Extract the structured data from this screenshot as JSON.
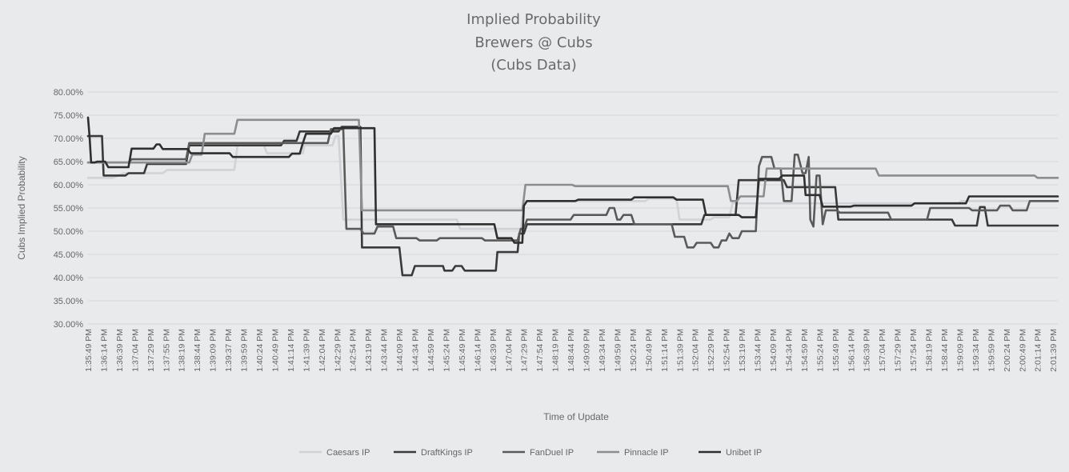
{
  "chart_data": {
    "type": "line",
    "title_lines": [
      "Implied Probability",
      "Brewers @ Cubs",
      "(Cubs Data)"
    ],
    "xlabel": "Time of Update",
    "ylabel": "Cubs Implied Probability",
    "ylim": [
      0.3,
      0.8
    ],
    "y_ticks": [
      "30.00%",
      "35.00%",
      "40.00%",
      "45.00%",
      "50.00%",
      "55.00%",
      "60.00%",
      "65.00%",
      "70.00%",
      "75.00%",
      "80.00%"
    ],
    "x_ticks": [
      "1:35:49 PM",
      "1:36:14 PM",
      "1:36:39 PM",
      "1:37:04 PM",
      "1:37:29 PM",
      "1:37:55 PM",
      "1:38:19 PM",
      "1:38:44 PM",
      "1:39:09 PM",
      "1:39:37 PM",
      "1:39:59 PM",
      "1:40:24 PM",
      "1:40:49 PM",
      "1:41:14 PM",
      "1:41:39 PM",
      "1:42:04 PM",
      "1:42:29 PM",
      "1:42:54 PM",
      "1:43:19 PM",
      "1:43:44 PM",
      "1:44:09 PM",
      "1:44:34 PM",
      "1:44:59 PM",
      "1:45:24 PM",
      "1:45:49 PM",
      "1:46:14 PM",
      "1:46:39 PM",
      "1:47:04 PM",
      "1:47:29 PM",
      "1:47:54 PM",
      "1:48:19 PM",
      "1:48:44 PM",
      "1:49:09 PM",
      "1:49:34 PM",
      "1:49:59 PM",
      "1:50:24 PM",
      "1:50:49 PM",
      "1:51:14 PM",
      "1:51:39 PM",
      "1:52:04 PM",
      "1:52:29 PM",
      "1:52:54 PM",
      "1:53:19 PM",
      "1:53:44 PM",
      "1:54:09 PM",
      "1:54:34 PM",
      "1:54:59 PM",
      "1:55:24 PM",
      "1:55:49 PM",
      "1:56:14 PM",
      "1:56:39 PM",
      "1:57:04 PM",
      "1:57:29 PM",
      "1:57:54 PM",
      "1:58:19 PM",
      "1:58:44 PM",
      "1:59:09 PM",
      "1:59:34 PM",
      "1:59:59 PM",
      "2:00:24 PM",
      "2:00:49 PM",
      "2:01:14 PM",
      "2:01:39 PM"
    ],
    "x_range_index": [
      0,
      62.3
    ],
    "legend_position": "bottom",
    "grid": true,
    "series": [
      {
        "name": "Caesars IP",
        "color": "#d0d2d6",
        "points": [
          [
            0,
            0.615
          ],
          [
            1.6,
            0.615
          ],
          [
            2.3,
            0.625
          ],
          [
            4.8,
            0.625
          ],
          [
            5.1,
            0.632
          ],
          [
            9.4,
            0.632
          ],
          [
            9.6,
            0.685
          ],
          [
            11.3,
            0.685
          ],
          [
            11.5,
            0.668
          ],
          [
            13.8,
            0.668
          ],
          [
            13.9,
            0.685
          ],
          [
            15.7,
            0.685
          ],
          [
            15.9,
            0.705
          ],
          [
            16.1,
            0.705
          ],
          [
            16.4,
            0.525
          ],
          [
            23.7,
            0.525
          ],
          [
            23.9,
            0.505
          ],
          [
            27.8,
            0.505
          ],
          [
            28.0,
            0.565
          ],
          [
            35.8,
            0.565
          ],
          [
            36.0,
            0.57
          ],
          [
            37.8,
            0.57
          ],
          [
            38.0,
            0.525
          ],
          [
            40.0,
            0.525
          ],
          [
            40.2,
            0.53
          ],
          [
            41.2,
            0.53
          ],
          [
            41.4,
            0.56
          ],
          [
            55.9,
            0.56
          ],
          [
            56.1,
            0.565
          ],
          [
            62.3,
            0.565
          ]
        ]
      },
      {
        "name": "DraftKings IP",
        "color": "#3a3a3a",
        "points": [
          [
            0,
            0.705
          ],
          [
            0.9,
            0.705
          ],
          [
            1.0,
            0.62
          ],
          [
            2.4,
            0.62
          ],
          [
            2.6,
            0.625
          ],
          [
            3.6,
            0.625
          ],
          [
            3.8,
            0.645
          ],
          [
            6.3,
            0.645
          ],
          [
            6.5,
            0.685
          ],
          [
            12.4,
            0.685
          ],
          [
            12.6,
            0.695
          ],
          [
            13.4,
            0.695
          ],
          [
            13.6,
            0.715
          ],
          [
            16.1,
            0.715
          ],
          [
            16.3,
            0.725
          ],
          [
            17.5,
            0.725
          ],
          [
            17.6,
            0.465
          ],
          [
            20.0,
            0.465
          ],
          [
            20.2,
            0.405
          ],
          [
            20.8,
            0.405
          ],
          [
            21.0,
            0.425
          ],
          [
            22.8,
            0.425
          ],
          [
            22.9,
            0.415
          ],
          [
            23.4,
            0.415
          ],
          [
            23.6,
            0.425
          ],
          [
            24.0,
            0.425
          ],
          [
            24.2,
            0.415
          ],
          [
            26.2,
            0.415
          ],
          [
            26.3,
            0.455
          ],
          [
            27.6,
            0.455
          ],
          [
            27.7,
            0.495
          ],
          [
            28.0,
            0.495
          ],
          [
            28.2,
            0.515
          ],
          [
            39.4,
            0.515
          ],
          [
            39.6,
            0.535
          ],
          [
            41.6,
            0.535
          ],
          [
            41.8,
            0.61
          ],
          [
            44.7,
            0.61
          ],
          [
            44.9,
            0.595
          ],
          [
            48.0,
            0.595
          ],
          [
            48.2,
            0.525
          ],
          [
            55.5,
            0.525
          ],
          [
            55.7,
            0.512
          ],
          [
            57.1,
            0.512
          ],
          [
            57.3,
            0.552
          ],
          [
            57.6,
            0.552
          ],
          [
            57.8,
            0.512
          ],
          [
            62.3,
            0.512
          ]
        ]
      },
      {
        "name": "FanDuel IP",
        "color": "#5a5a5a",
        "points": [
          [
            0,
            0.648
          ],
          [
            2.6,
            0.648
          ],
          [
            2.8,
            0.655
          ],
          [
            6.3,
            0.655
          ],
          [
            6.5,
            0.69
          ],
          [
            15.4,
            0.69
          ],
          [
            15.6,
            0.72
          ],
          [
            16.4,
            0.72
          ],
          [
            16.6,
            0.505
          ],
          [
            17.5,
            0.505
          ],
          [
            17.7,
            0.495
          ],
          [
            18.4,
            0.495
          ],
          [
            18.6,
            0.51
          ],
          [
            19.6,
            0.51
          ],
          [
            19.8,
            0.485
          ],
          [
            21.1,
            0.485
          ],
          [
            21.3,
            0.48
          ],
          [
            22.4,
            0.48
          ],
          [
            22.6,
            0.485
          ],
          [
            25.3,
            0.485
          ],
          [
            25.5,
            0.48
          ],
          [
            27.6,
            0.48
          ],
          [
            27.8,
            0.505
          ],
          [
            28.0,
            0.505
          ],
          [
            28.2,
            0.525
          ],
          [
            31.0,
            0.525
          ],
          [
            31.2,
            0.535
          ],
          [
            33.3,
            0.535
          ],
          [
            33.5,
            0.55
          ],
          [
            33.8,
            0.55
          ],
          [
            34.0,
            0.525
          ],
          [
            34.2,
            0.525
          ],
          [
            34.4,
            0.535
          ],
          [
            34.9,
            0.535
          ],
          [
            35.1,
            0.515
          ],
          [
            37.5,
            0.515
          ],
          [
            37.7,
            0.488
          ],
          [
            38.3,
            0.488
          ],
          [
            38.5,
            0.465
          ],
          [
            38.9,
            0.465
          ],
          [
            39.1,
            0.475
          ],
          [
            40.0,
            0.475
          ],
          [
            40.2,
            0.465
          ],
          [
            40.5,
            0.465
          ],
          [
            40.7,
            0.48
          ],
          [
            41.0,
            0.48
          ],
          [
            41.2,
            0.495
          ],
          [
            41.4,
            0.485
          ],
          [
            41.8,
            0.485
          ],
          [
            42.0,
            0.5
          ],
          [
            42.9,
            0.5
          ],
          [
            43.1,
            0.64
          ],
          [
            43.3,
            0.66
          ],
          [
            43.9,
            0.66
          ],
          [
            44.1,
            0.635
          ],
          [
            44.5,
            0.635
          ],
          [
            44.7,
            0.565
          ],
          [
            45.2,
            0.565
          ],
          [
            45.4,
            0.665
          ],
          [
            45.6,
            0.665
          ],
          [
            45.9,
            0.625
          ],
          [
            46.1,
            0.625
          ],
          [
            46.3,
            0.66
          ],
          [
            46.4,
            0.525
          ],
          [
            46.6,
            0.51
          ],
          [
            46.8,
            0.62
          ],
          [
            47.0,
            0.62
          ],
          [
            47.2,
            0.515
          ],
          [
            47.4,
            0.545
          ],
          [
            48.1,
            0.545
          ],
          [
            48.3,
            0.54
          ],
          [
            51.4,
            0.54
          ],
          [
            51.6,
            0.525
          ],
          [
            53.9,
            0.525
          ],
          [
            54.1,
            0.55
          ],
          [
            56.6,
            0.55
          ],
          [
            56.8,
            0.545
          ],
          [
            58.4,
            0.545
          ],
          [
            58.6,
            0.555
          ],
          [
            59.2,
            0.555
          ],
          [
            59.4,
            0.545
          ],
          [
            60.3,
            0.545
          ],
          [
            60.5,
            0.565
          ],
          [
            62.3,
            0.565
          ]
        ]
      },
      {
        "name": "Pinnacle IP",
        "color": "#8c8d90",
        "points": [
          [
            0,
            0.648
          ],
          [
            6.5,
            0.648
          ],
          [
            6.7,
            0.665
          ],
          [
            7.3,
            0.665
          ],
          [
            7.5,
            0.71
          ],
          [
            9.4,
            0.71
          ],
          [
            9.6,
            0.74
          ],
          [
            17.4,
            0.74
          ],
          [
            17.6,
            0.545
          ],
          [
            27.9,
            0.545
          ],
          [
            28.1,
            0.6
          ],
          [
            31.1,
            0.6
          ],
          [
            31.3,
            0.597
          ],
          [
            41.1,
            0.597
          ],
          [
            41.3,
            0.565
          ],
          [
            41.7,
            0.565
          ],
          [
            41.9,
            0.575
          ],
          [
            43.4,
            0.575
          ],
          [
            43.6,
            0.635
          ],
          [
            50.6,
            0.635
          ],
          [
            50.8,
            0.62
          ],
          [
            60.8,
            0.62
          ],
          [
            61.0,
            0.615
          ],
          [
            62.3,
            0.615
          ]
        ]
      },
      {
        "name": "Unibet IP",
        "color": "#2f2f2f",
        "points": [
          [
            0,
            0.745
          ],
          [
            0.1,
            0.705
          ],
          [
            0.2,
            0.648
          ],
          [
            0.4,
            0.648
          ],
          [
            0.6,
            0.65
          ],
          [
            1.1,
            0.65
          ],
          [
            1.3,
            0.638
          ],
          [
            2.6,
            0.638
          ],
          [
            2.8,
            0.678
          ],
          [
            4.2,
            0.678
          ],
          [
            4.4,
            0.687
          ],
          [
            4.6,
            0.687
          ],
          [
            4.8,
            0.677
          ],
          [
            6.4,
            0.677
          ],
          [
            6.6,
            0.668
          ],
          [
            9.1,
            0.668
          ],
          [
            9.3,
            0.66
          ],
          [
            12.9,
            0.66
          ],
          [
            13.1,
            0.667
          ],
          [
            13.6,
            0.667
          ],
          [
            13.8,
            0.69
          ],
          [
            14.0,
            0.71
          ],
          [
            15.6,
            0.71
          ],
          [
            15.8,
            0.722
          ],
          [
            18.4,
            0.722
          ],
          [
            18.5,
            0.515
          ],
          [
            26.1,
            0.515
          ],
          [
            26.3,
            0.485
          ],
          [
            27.2,
            0.485
          ],
          [
            27.4,
            0.475
          ],
          [
            27.9,
            0.475
          ],
          [
            28.0,
            0.555
          ],
          [
            28.2,
            0.565
          ],
          [
            31.3,
            0.565
          ],
          [
            31.5,
            0.568
          ],
          [
            34.9,
            0.568
          ],
          [
            35.1,
            0.573
          ],
          [
            37.6,
            0.573
          ],
          [
            37.8,
            0.568
          ],
          [
            39.5,
            0.568
          ],
          [
            39.7,
            0.535
          ],
          [
            41.8,
            0.535
          ],
          [
            42.0,
            0.53
          ],
          [
            42.9,
            0.53
          ],
          [
            43.1,
            0.613
          ],
          [
            44.4,
            0.613
          ],
          [
            44.6,
            0.62
          ],
          [
            46.0,
            0.62
          ],
          [
            46.1,
            0.578
          ],
          [
            47.0,
            0.578
          ],
          [
            47.2,
            0.553
          ],
          [
            48.0,
            0.553
          ],
          [
            48.2,
            0.553
          ],
          [
            49.0,
            0.553
          ],
          [
            49.2,
            0.555
          ],
          [
            52.9,
            0.555
          ],
          [
            53.1,
            0.56
          ],
          [
            56.4,
            0.56
          ],
          [
            56.6,
            0.575
          ],
          [
            62.3,
            0.575
          ]
        ]
      }
    ]
  }
}
